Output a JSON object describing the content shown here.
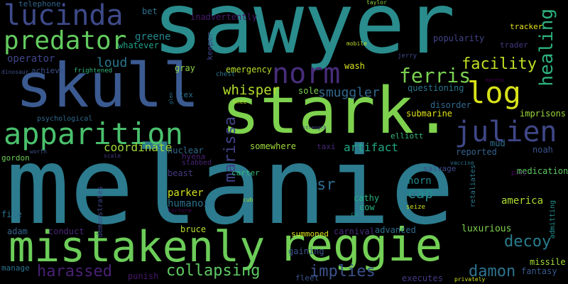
{
  "cloud": {
    "background": "#000000",
    "words": [
      {
        "id": "sawyer",
        "text": "sawyer",
        "color": "#2a8c8c",
        "rotate": false
      },
      {
        "id": "melanie",
        "text": "melanie",
        "color": "#2c7b8e",
        "rotate": false
      },
      {
        "id": "skull",
        "text": "skull",
        "color": "#3b5a91",
        "rotate": false
      },
      {
        "id": "stark",
        "text": "stark.",
        "color": "#7ed24e",
        "rotate": false
      },
      {
        "id": "mistakenly",
        "text": "mistakenly",
        "color": "#6ccd59",
        "rotate": false
      },
      {
        "id": "reggie",
        "text": "reggie",
        "color": "#73d055",
        "rotate": false
      },
      {
        "id": "apparition",
        "text": "apparition",
        "color": "#4ac16d",
        "rotate": false
      },
      {
        "id": "lucinda",
        "text": "lucinda",
        "color": "#3e4a89",
        "rotate": false
      },
      {
        "id": "predator",
        "text": "predator",
        "color": "#63cb5f",
        "rotate": false
      },
      {
        "id": "norm",
        "text": "norm",
        "color": "#472d7b",
        "rotate": false
      },
      {
        "id": "log",
        "text": "log",
        "color": "#d8e219",
        "rotate": false
      },
      {
        "id": "julien",
        "text": "julien",
        "color": "#3f4788",
        "rotate": false
      },
      {
        "id": "healing",
        "text": "healing",
        "color": "#2db27d",
        "rotate": true
      },
      {
        "id": "marissa",
        "text": "marissa",
        "color": "#404387",
        "rotate": true
      },
      {
        "id": "ferris",
        "text": "ferris",
        "color": "#7ad151",
        "rotate": false
      },
      {
        "id": "facility",
        "text": "facility",
        "color": "#c2df23",
        "rotate": false
      },
      {
        "id": "whisper",
        "text": "whisper",
        "color": "#b5de2b",
        "rotate": false
      },
      {
        "id": "smuggler",
        "text": "smuggler",
        "color": "#31688e",
        "rotate": false
      },
      {
        "id": "loud",
        "text": "loud",
        "color": "#2a768e",
        "rotate": false
      },
      {
        "id": "decoy",
        "text": "decoy",
        "color": "#287c8e",
        "rotate": false
      },
      {
        "id": "damon",
        "text": "damon",
        "color": "#2c738e",
        "rotate": false
      },
      {
        "id": "harassed",
        "text": "harassed",
        "color": "#482173",
        "rotate": false
      },
      {
        "id": "collapsing",
        "text": "collapsing",
        "color": "#5ec962",
        "rotate": false
      },
      {
        "id": "implies",
        "text": "implies",
        "color": "#3b528b",
        "rotate": false
      },
      {
        "id": "coordinate",
        "text": "coordinate",
        "color": "#9fda3a",
        "rotate": false
      },
      {
        "id": "artifact",
        "text": "artifact",
        "color": "#22a884",
        "rotate": false
      },
      {
        "id": "sr",
        "text": "sr",
        "color": "#2f6c8e",
        "rotate": false
      },
      {
        "id": "cap",
        "text": "cap",
        "color": "#228c8d",
        "rotate": false
      },
      {
        "id": "horn",
        "text": "horn",
        "color": "#23888e",
        "rotate": false
      },
      {
        "id": "operator",
        "text": "operator",
        "color": "#404688",
        "rotate": false
      },
      {
        "id": "greene",
        "text": "greene",
        "color": "#24868e",
        "rotate": false
      },
      {
        "id": "whatever",
        "text": "whatever",
        "color": "#1fa187",
        "rotate": false
      },
      {
        "id": "emergency",
        "text": "emergency",
        "color": "#b8de29",
        "rotate": false
      },
      {
        "id": "gray",
        "text": "gray",
        "color": "#8ed645",
        "rotate": false
      },
      {
        "id": "questioning",
        "text": "questioning",
        "color": "#2b758e",
        "rotate": false
      },
      {
        "id": "disorder",
        "text": "disorder",
        "color": "#31688e",
        "rotate": false
      },
      {
        "id": "submarine",
        "text": "submarine",
        "color": "#e2e418",
        "rotate": false
      },
      {
        "id": "imprisons",
        "text": "imprisons",
        "color": "#9bd93c",
        "rotate": false
      },
      {
        "id": "somewhere",
        "text": "somewhere",
        "color": "#a0da39",
        "rotate": false
      },
      {
        "id": "nuclear",
        "text": "nuclear",
        "color": "#30698e",
        "rotate": false
      },
      {
        "id": "beast",
        "text": "beast",
        "color": "#443a83",
        "rotate": false
      },
      {
        "id": "parker",
        "text": "parker",
        "color": "#d0e11c",
        "rotate": false
      },
      {
        "id": "humanoid",
        "text": "humanoid",
        "color": "#2d718e",
        "rotate": false
      },
      {
        "id": "carter",
        "text": "carter",
        "color": "#32b67a",
        "rotate": false
      },
      {
        "id": "cathy",
        "text": "cathy",
        "color": "#2ab07f",
        "rotate": false
      },
      {
        "id": "cow",
        "text": "cow",
        "color": "#29af7f",
        "rotate": false
      },
      {
        "id": "america",
        "text": "america",
        "color": "#addc30",
        "rotate": false
      },
      {
        "id": "fantasy",
        "text": "fantasy",
        "color": "#38588c",
        "rotate": false
      },
      {
        "id": "reported",
        "text": "reported",
        "color": "#33638d",
        "rotate": false
      },
      {
        "id": "medication",
        "text": "medication",
        "color": "#5ec962",
        "rotate": false
      },
      {
        "id": "noah",
        "text": "noah",
        "color": "#3a548c",
        "rotate": false
      },
      {
        "id": "mud",
        "text": "mud",
        "color": "#2d708e",
        "rotate": false
      },
      {
        "id": "elliott",
        "text": "elliott",
        "color": "#35b779",
        "rotate": false
      },
      {
        "id": "taxi",
        "text": "taxi",
        "color": "#482677",
        "rotate": false
      },
      {
        "id": "salvage",
        "text": "salvage",
        "color": "#3e4c8a",
        "rotate": false
      },
      {
        "id": "popularity",
        "text": "popularity",
        "color": "#414487",
        "rotate": false
      },
      {
        "id": "inadvertently",
        "text": "inadvertently",
        "color": "#481a6c",
        "rotate": false
      },
      {
        "id": "telephone",
        "text": "telephone",
        "color": "#31668e",
        "rotate": false
      },
      {
        "id": "bet",
        "text": "bet",
        "color": "#2c728e",
        "rotate": false
      },
      {
        "id": "keeper",
        "text": "keeper",
        "color": "#414487",
        "rotate": true
      },
      {
        "id": "tracker",
        "text": "tracker",
        "color": "#e5e419",
        "rotate": false
      },
      {
        "id": "trader",
        "text": "trader",
        "color": "#453781",
        "rotate": false
      },
      {
        "id": "wash",
        "text": "wash",
        "color": "#d8e219",
        "rotate": false
      },
      {
        "id": "achieve",
        "text": "achieve",
        "color": "#3b528b",
        "rotate": false
      },
      {
        "id": "frightened",
        "text": "frightened",
        "color": "#31b57b",
        "rotate": false
      },
      {
        "id": "chest",
        "text": "chest",
        "color": "#2a768e",
        "rotate": false
      },
      {
        "id": "sole",
        "text": "sole",
        "color": "#7fd34e",
        "rotate": false
      },
      {
        "id": "tex",
        "text": "tex",
        "color": "#2c738e",
        "rotate": false
      },
      {
        "id": "psychological",
        "text": "psychological",
        "color": "#30698e",
        "rotate": false
      },
      {
        "id": "worth",
        "text": "worth",
        "color": "#3b528b",
        "rotate": false
      },
      {
        "id": "gordon",
        "text": "gordon",
        "color": "#6ece58",
        "rotate": false
      },
      {
        "id": "stabbed",
        "text": "stabbed",
        "color": "#482475",
        "rotate": false
      },
      {
        "id": "hyena",
        "text": "hyena",
        "color": "#482071",
        "rotate": false
      },
      {
        "id": "file",
        "text": "file",
        "color": "#2d708e",
        "rotate": false
      },
      {
        "id": "adam",
        "text": "adam",
        "color": "#33638d",
        "rotate": false
      },
      {
        "id": "conduct",
        "text": "conduct",
        "color": "#482878",
        "rotate": false
      },
      {
        "id": "bruce",
        "text": "bruce",
        "color": "#b5de2b",
        "rotate": false
      },
      {
        "id": "summoned",
        "text": "summoned",
        "color": "#d8e219",
        "rotate": false
      },
      {
        "id": "carnival",
        "text": "carnival",
        "color": "#472c7a",
        "rotate": false
      },
      {
        "id": "advanced",
        "text": "advanced",
        "color": "#2f6c8e",
        "rotate": false
      },
      {
        "id": "luxurious",
        "text": "luxurious",
        "color": "#7fd34e",
        "rotate": false
      },
      {
        "id": "gaining",
        "text": "gaining",
        "color": "#3a548c",
        "rotate": false
      },
      {
        "id": "missile",
        "text": "missile",
        "color": "#a5db36",
        "rotate": false
      },
      {
        "id": "executes",
        "text": "executes",
        "color": "#443983",
        "rotate": false
      },
      {
        "id": "manage",
        "text": "manage",
        "color": "#2c728e",
        "rotate": false
      },
      {
        "id": "punish",
        "text": "punish",
        "color": "#481769",
        "rotate": false
      },
      {
        "id": "fleet",
        "text": "fleet",
        "color": "#3b528b",
        "rotate": false
      },
      {
        "id": "privately",
        "text": "privately",
        "color": "#d0e11c",
        "rotate": false
      },
      {
        "id": "demonstrates",
        "text": "demonstrates",
        "color": "#3e4989",
        "rotate": true
      },
      {
        "id": "retaliates",
        "text": "retaliates",
        "color": "#2a788e",
        "rotate": true
      },
      {
        "id": "admitting",
        "text": "admitting",
        "color": "#228d8d",
        "rotate": true
      },
      {
        "id": "pity",
        "text": "pity",
        "color": "#460b5e",
        "rotate": false
      },
      {
        "id": "vaccine",
        "text": "vaccine",
        "color": "#2c718e",
        "rotate": false
      },
      {
        "id": "seize",
        "text": "seize",
        "color": "#d2e21b",
        "rotate": false
      },
      {
        "id": "ca",
        "text": "ca",
        "color": "#21918c",
        "rotate": false
      },
      {
        "id": "cub",
        "text": "cub",
        "color": "#a8db34",
        "rotate": false
      },
      {
        "id": "torture",
        "text": "torture",
        "color": "#440154",
        "rotate": false
      },
      {
        "id": "scale",
        "text": "scale",
        "color": "#443a83",
        "rotate": false
      },
      {
        "id": "mobile",
        "text": "mobile",
        "color": "#bddf26",
        "rotate": false
      },
      {
        "id": "jerry",
        "text": "jerry",
        "color": "#3e4989",
        "rotate": false
      },
      {
        "id": "taylor",
        "text": "taylor",
        "color": "#90d743",
        "rotate": false
      },
      {
        "id": "dinosaur",
        "text": "dinosaur",
        "color": "#3b528b",
        "rotate": false
      },
      {
        "id": "knee",
        "text": "knee",
        "color": "#b5de2b",
        "rotate": false
      },
      {
        "id": "strength",
        "text": "strength",
        "color": "#3f4788",
        "rotate": false
      },
      {
        "id": "martha",
        "text": "martha",
        "color": "#440154",
        "rotate": false
      },
      {
        "id": "glen",
        "text": "glen",
        "color": "#2d718e",
        "rotate": true
      }
    ]
  }
}
